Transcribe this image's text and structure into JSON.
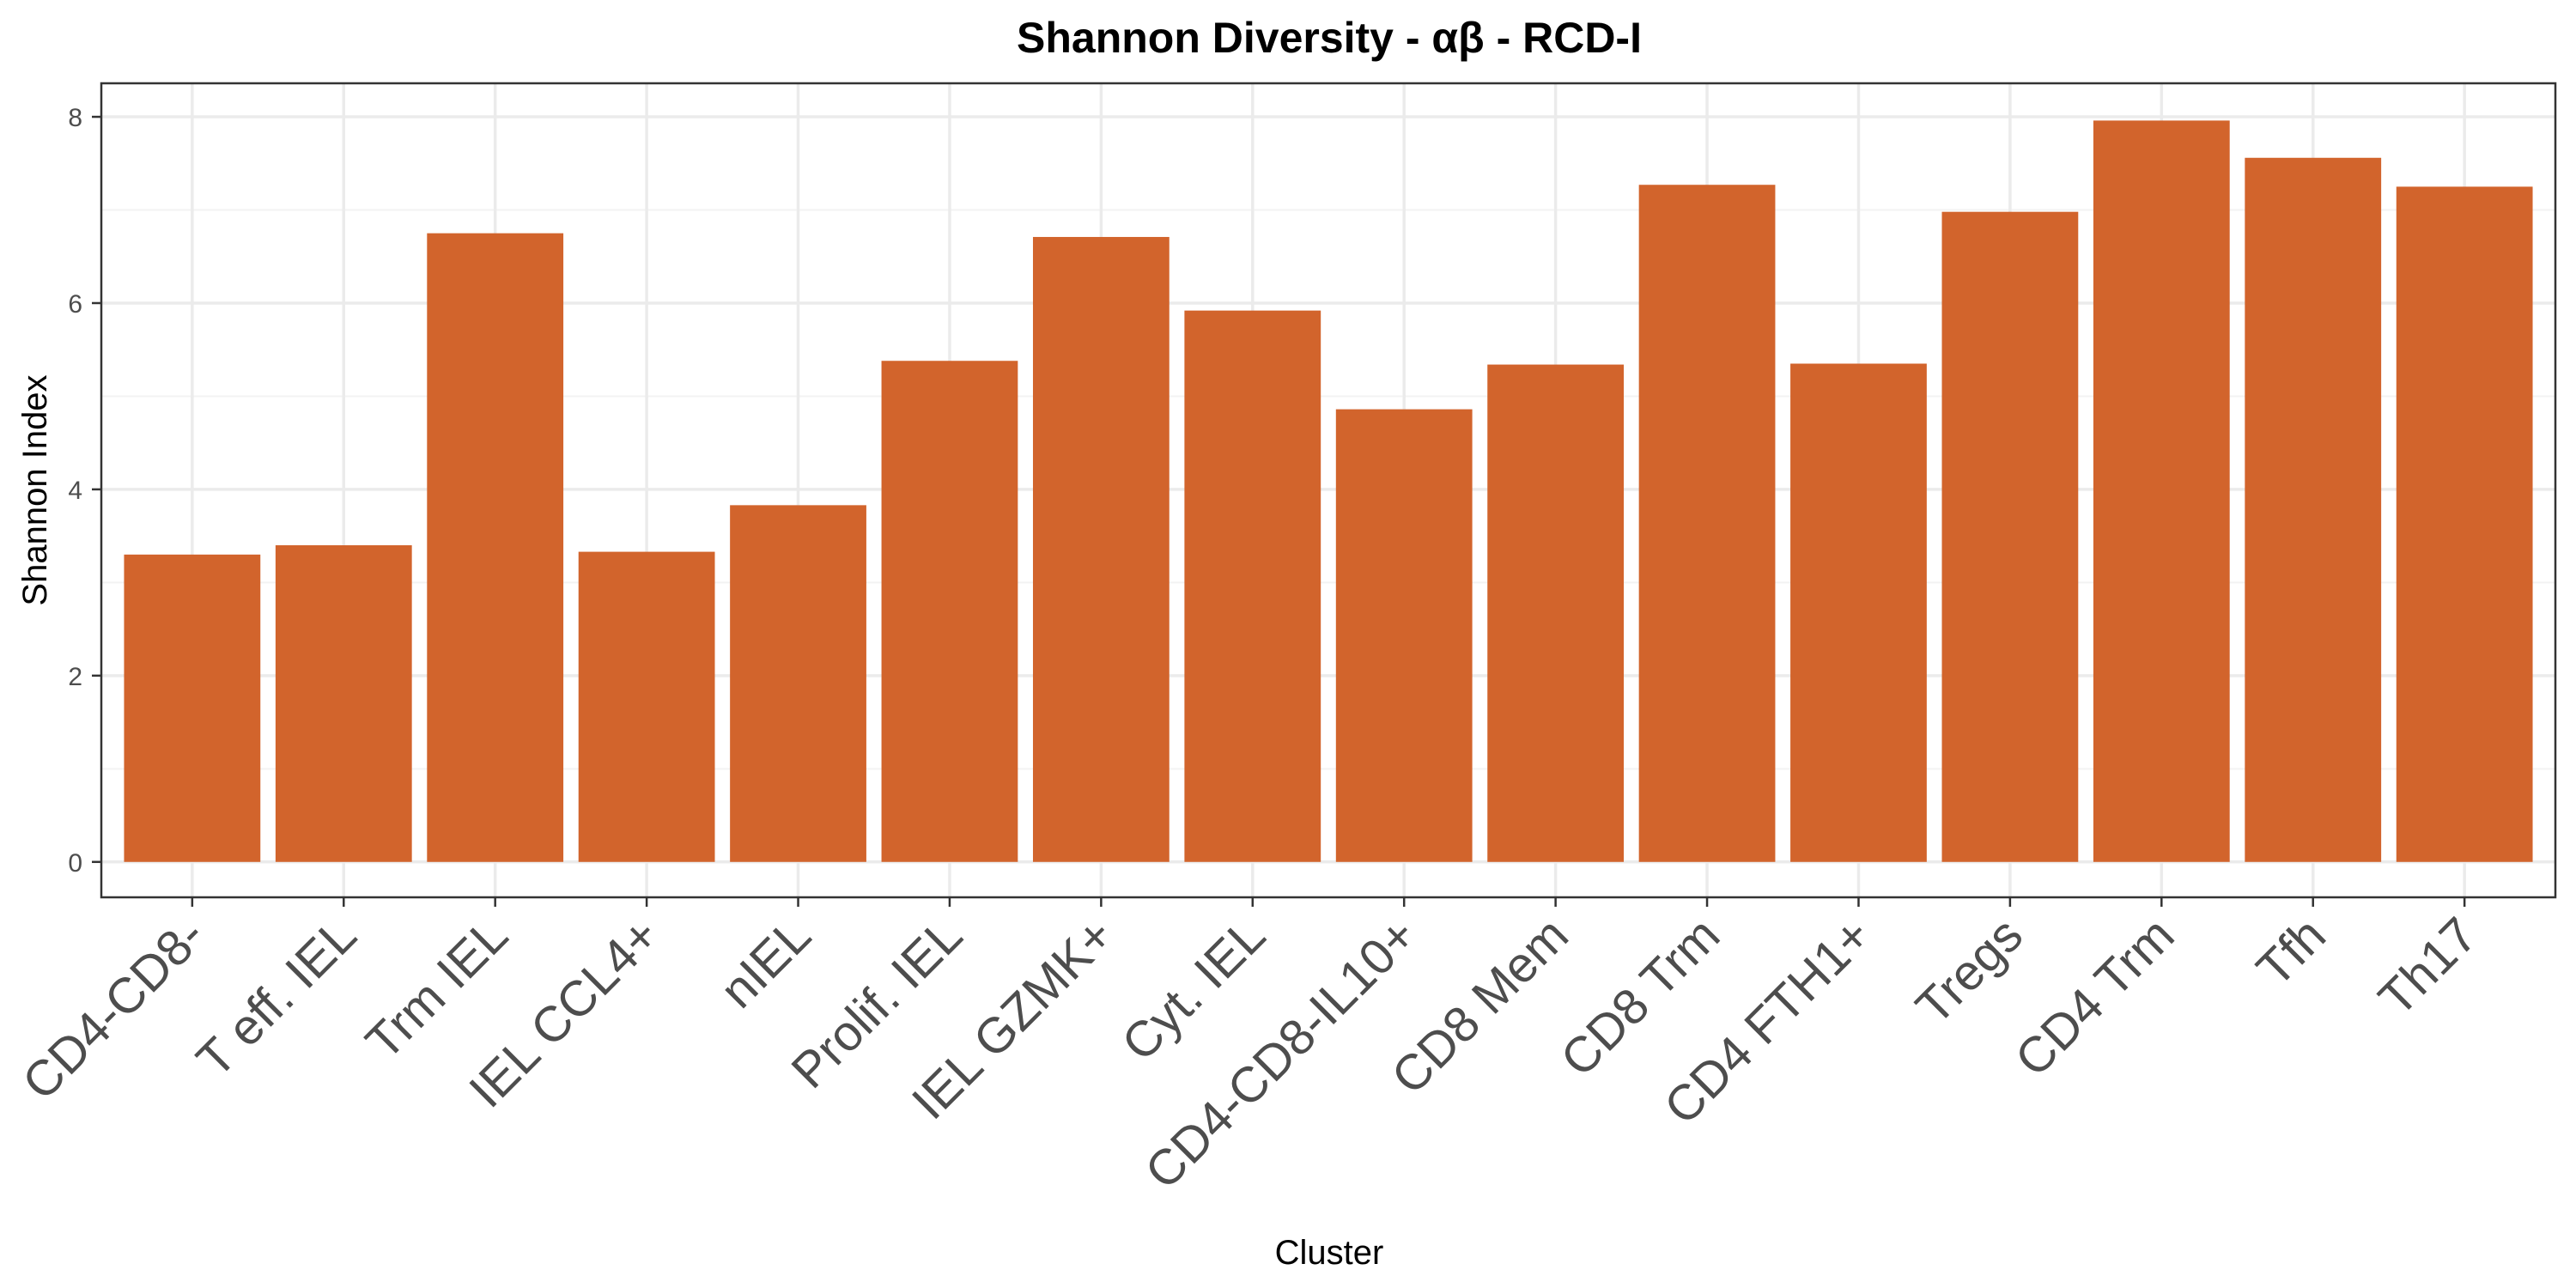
{
  "chart_data": {
    "type": "bar",
    "title": "Shannon Diversity - αβ - RCD-I",
    "xlabel": "Cluster",
    "ylabel": "Shannon Index",
    "categories": [
      "CD4-CD8-",
      "T eff. IEL",
      "Trm IEL",
      "IEL CCL4+",
      "nIEL",
      "Prolif. IEL",
      "IEL GZMK+",
      "Cyt. IEL",
      "CD4-CD8-IL10+",
      "CD8 Mem",
      "CD8 Trm",
      "CD4 FTH1+",
      "Tregs",
      "CD4 Trm",
      "Tfh",
      "Th17"
    ],
    "values": [
      3.3,
      3.4,
      6.75,
      3.33,
      3.83,
      5.38,
      6.71,
      5.92,
      4.86,
      5.34,
      7.27,
      5.35,
      6.98,
      7.96,
      7.56,
      7.25
    ],
    "ylim": [
      -0.38,
      8.36
    ],
    "y_ticks": [
      0,
      2,
      4,
      6,
      8
    ],
    "y_tick_labels": [
      "0",
      "2",
      "4",
      "6",
      "8"
    ],
    "bar_color": "#D2642C",
    "grid": true,
    "legend": "none"
  }
}
